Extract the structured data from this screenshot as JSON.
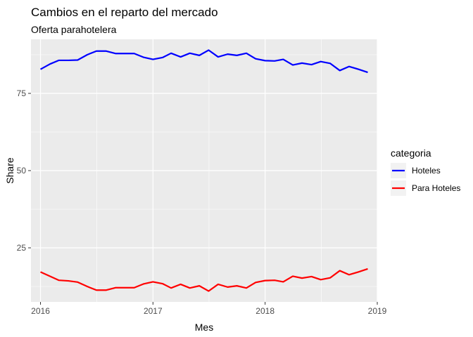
{
  "chart_data": {
    "type": "line",
    "title": "Cambios en el reparto del mercado",
    "subtitle": "Oferta parahotelera",
    "xlabel": "Mes",
    "ylabel": "Share",
    "xlim": [
      "2015-12-01",
      "2019-01-01"
    ],
    "ylim": [
      7.5,
      92.5
    ],
    "x_ticks": [
      "2016",
      "2017",
      "2018",
      "2019"
    ],
    "y_ticks": [
      25,
      50,
      75
    ],
    "grid": true,
    "legend": {
      "title": "categoria",
      "position": "right"
    },
    "x": [
      "2016-01",
      "2016-02",
      "2016-03",
      "2016-04",
      "2016-05",
      "2016-06",
      "2016-07",
      "2016-08",
      "2016-09",
      "2016-10",
      "2016-11",
      "2016-12",
      "2017-01",
      "2017-02",
      "2017-03",
      "2017-04",
      "2017-05",
      "2017-06",
      "2017-07",
      "2017-08",
      "2017-09",
      "2017-10",
      "2017-11",
      "2017-12",
      "2018-01",
      "2018-02",
      "2018-03",
      "2018-04",
      "2018-05",
      "2018-06",
      "2018-07",
      "2018-08",
      "2018-09",
      "2018-10",
      "2018-11",
      "2018-12"
    ],
    "series": [
      {
        "name": "Hoteles",
        "color": "#0000ff",
        "values": [
          82.8,
          84.5,
          85.7,
          85.7,
          85.8,
          87.5,
          88.7,
          88.7,
          87.9,
          87.9,
          87.9,
          86.7,
          86.0,
          86.6,
          88.0,
          86.8,
          88.0,
          87.3,
          89.0,
          86.8,
          87.7,
          87.3,
          88.0,
          86.2,
          85.6,
          85.5,
          86.0,
          84.2,
          84.8,
          84.3,
          85.3,
          84.7,
          82.4,
          83.7,
          82.8,
          81.8
        ]
      },
      {
        "name": "Para Hoteles",
        "color": "#ff0000",
        "values": [
          17.2,
          15.8,
          14.5,
          14.3,
          13.9,
          12.5,
          11.3,
          11.3,
          12.1,
          12.1,
          12.1,
          13.3,
          14.0,
          13.4,
          12.0,
          13.2,
          12.0,
          12.7,
          11.0,
          13.2,
          12.3,
          12.7,
          12.0,
          13.8,
          14.4,
          14.5,
          14.0,
          15.8,
          15.2,
          15.7,
          14.7,
          15.3,
          17.6,
          16.3,
          17.2,
          18.2
        ]
      }
    ]
  }
}
